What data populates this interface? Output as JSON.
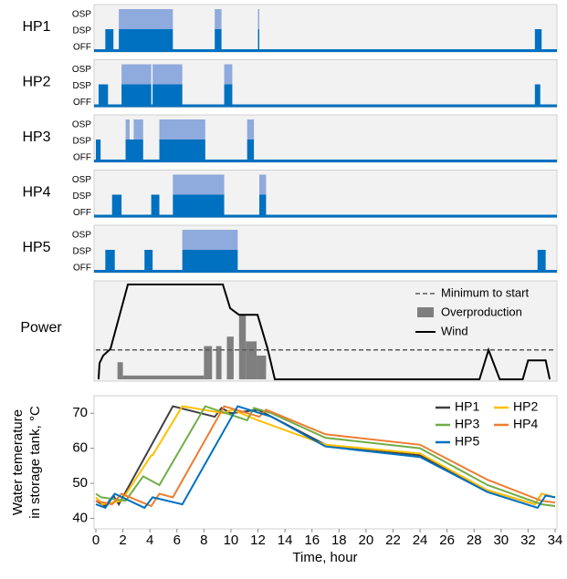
{
  "chart_data": [
    {
      "type": "state",
      "label": "HP1",
      "levels": [
        "OFF",
        "DSP",
        "OSP"
      ],
      "xlim": [
        0,
        34
      ],
      "color_dsp": "#0070c0",
      "color_osp": "#8faadc",
      "dsp": [
        [
          0.7,
          1.3
        ],
        [
          1.7,
          5.7
        ],
        [
          8.8,
          9.3
        ],
        [
          12.0,
          12.1
        ],
        [
          32.5,
          33.0
        ]
      ],
      "osp": [
        [
          1.7,
          5.7
        ],
        [
          8.8,
          9.3
        ],
        [
          12.0,
          12.1
        ]
      ]
    },
    {
      "type": "state",
      "label": "HP2",
      "levels": [
        "OFF",
        "DSP",
        "OSP"
      ],
      "xlim": [
        0,
        34
      ],
      "color_dsp": "#0070c0",
      "color_osp": "#8faadc",
      "dsp": [
        [
          0.2,
          0.9
        ],
        [
          1.9,
          4.1
        ],
        [
          4.2,
          6.4
        ],
        [
          9.5,
          10.1
        ],
        [
          32.5,
          32.9
        ]
      ],
      "osp": [
        [
          1.9,
          4.1
        ],
        [
          4.2,
          6.4
        ],
        [
          9.5,
          10.1
        ]
      ]
    },
    {
      "type": "state",
      "label": "HP3",
      "levels": [
        "OFF",
        "DSP",
        "OSP"
      ],
      "xlim": [
        0,
        34
      ],
      "color_dsp": "#0070c0",
      "color_osp": "#8faadc",
      "dsp": [
        [
          0.0,
          0.35
        ],
        [
          2.2,
          3.5
        ],
        [
          4.7,
          8.1
        ],
        [
          11.2,
          11.7
        ]
      ],
      "osp": [
        [
          2.2,
          2.5
        ],
        [
          2.8,
          3.5
        ],
        [
          4.7,
          8.1
        ],
        [
          11.2,
          11.7
        ]
      ]
    },
    {
      "type": "state",
      "label": "HP4",
      "levels": [
        "OFF",
        "DSP",
        "OSP"
      ],
      "xlim": [
        0,
        34
      ],
      "color_dsp": "#0070c0",
      "color_osp": "#8faadc",
      "dsp": [
        [
          1.2,
          1.9
        ],
        [
          4.1,
          4.7
        ],
        [
          5.7,
          9.5
        ],
        [
          12.1,
          12.6
        ]
      ],
      "osp": [
        [
          5.7,
          9.5
        ],
        [
          12.1,
          12.6
        ]
      ]
    },
    {
      "type": "state",
      "label": "HP5",
      "levels": [
        "OFF",
        "DSP",
        "OSP"
      ],
      "xlim": [
        0,
        34
      ],
      "color_dsp": "#0070c0",
      "color_osp": "#8faadc",
      "dsp": [
        [
          0.7,
          1.4
        ],
        [
          3.6,
          4.2
        ],
        [
          6.4,
          10.5
        ],
        [
          32.7,
          33.3
        ]
      ],
      "osp": [
        [
          6.4,
          10.5
        ]
      ]
    },
    {
      "type": "power",
      "label": "Power",
      "xlim": [
        0,
        34
      ],
      "ylim": [
        0,
        100
      ],
      "min_to_start": {
        "name": "Minimum to start",
        "value": 31,
        "color": "#595959"
      },
      "overproduction": {
        "name": "Overproduction",
        "color": "#7f7f7f",
        "bars": [
          [
            1.6,
            2.0,
            18
          ],
          [
            2.0,
            8.0,
            4
          ],
          [
            8.0,
            8.6,
            35
          ],
          [
            8.9,
            9.3,
            35
          ],
          [
            9.7,
            10.2,
            45
          ],
          [
            10.6,
            11.1,
            68
          ],
          [
            11.1,
            11.9,
            40
          ],
          [
            11.9,
            12.6,
            25
          ]
        ]
      },
      "wind": {
        "name": "Wind",
        "color": "#000000",
        "x": [
          0.2,
          0.27,
          0.54,
          1.08,
          2.37,
          9.4,
          9.94,
          10.6,
          11.97,
          12.7,
          13.25,
          28.4,
          29.07,
          29.9,
          31.6,
          32.0,
          33.3,
          33.6
        ],
        "values": [
          0,
          17,
          25,
          32,
          100,
          100,
          75,
          68,
          68,
          33,
          0,
          0,
          31,
          0,
          0,
          20,
          20,
          0
        ]
      }
    },
    {
      "type": "line",
      "ylabel": [
        "Water temerature",
        "in storage tank, °C"
      ],
      "xlabel": "Time, hour",
      "xlim": [
        0,
        34
      ],
      "xticks": [
        0,
        2,
        4,
        6,
        8,
        10,
        12,
        14,
        16,
        18,
        20,
        22,
        24,
        26,
        28,
        30,
        32,
        34
      ],
      "ylim": [
        37,
        75
      ],
      "yticks": [
        40,
        50,
        60,
        70
      ],
      "series": [
        {
          "name": "HP1",
          "color": "#404040",
          "x": [
            0,
            0.7,
            1.3,
            1.7,
            5.7,
            8.8,
            9.3,
            10,
            12,
            13,
            17,
            24,
            29,
            32.5,
            33,
            34
          ],
          "values": [
            45,
            43.5,
            46.5,
            44,
            72,
            69,
            71.5,
            70,
            71,
            69,
            61,
            58,
            48,
            44,
            47,
            46
          ]
        },
        {
          "name": "HP2",
          "color": "#ffc000",
          "x": [
            0,
            0.5,
            1.9,
            4.1,
            4.2,
            6.4,
            9.5,
            10.1,
            12,
            17,
            24,
            29,
            32.5,
            33,
            34
          ],
          "values": [
            46,
            44,
            45,
            58,
            58,
            72,
            70,
            71,
            68,
            61,
            58.5,
            48,
            44,
            47,
            46
          ]
        },
        {
          "name": "HP3",
          "color": "#70ad47",
          "x": [
            0,
            0.4,
            2.2,
            3.5,
            4.7,
            8.1,
            11.2,
            11.7,
            13,
            17,
            24,
            29,
            33,
            34
          ],
          "values": [
            47,
            46,
            45,
            52,
            49.5,
            72,
            68,
            71.5,
            70,
            63,
            60,
            49.5,
            44,
            43.5
          ]
        },
        {
          "name": "HP4",
          "color": "#ed7d31",
          "x": [
            0,
            1.2,
            1.9,
            4.1,
            4.7,
            5.7,
            9.5,
            12.1,
            12.6,
            17,
            24,
            29,
            33,
            34
          ],
          "values": [
            45,
            44,
            47,
            43.5,
            47,
            46,
            72,
            69,
            71,
            64,
            61,
            51,
            45,
            44.5
          ]
        },
        {
          "name": "HP5",
          "color": "#0070c0",
          "x": [
            0,
            0.7,
            1.4,
            3.6,
            4.2,
            6.4,
            10.5,
            13,
            17,
            24,
            29,
            32.7,
            33.3,
            34
          ],
          "values": [
            44,
            43,
            47,
            43,
            46,
            44,
            72,
            69,
            60.5,
            57.5,
            47.5,
            43,
            46.5,
            46
          ]
        }
      ]
    }
  ]
}
